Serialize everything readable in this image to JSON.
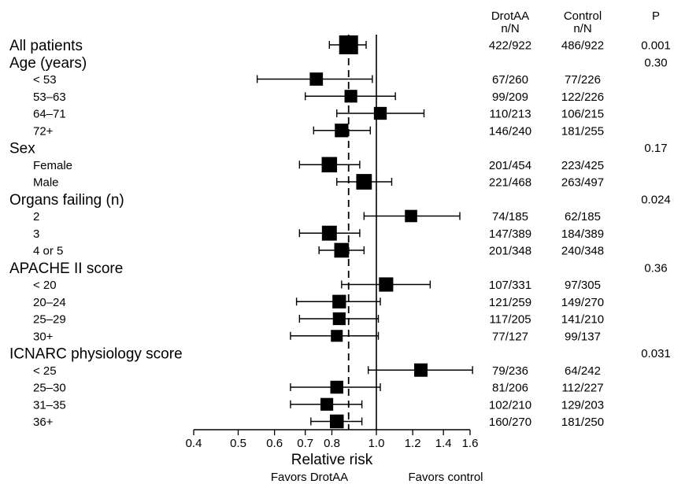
{
  "chart_data": {
    "type": "forest",
    "xlabel": "Relative risk",
    "xscale": "log",
    "xlim": [
      0.4,
      1.6
    ],
    "xticks": [
      "0.4",
      "0.5",
      "0.6",
      "0.7",
      "0.8",
      "1.0",
      "1.2",
      "1.4",
      "1.6"
    ],
    "reference_line": 1.0,
    "overall_line": 0.87,
    "favors_left": "Favors DrotAA",
    "favors_right": "Favors control",
    "columns": {
      "drotaa": [
        "DrotAA",
        "n/N"
      ],
      "control": [
        "Control",
        "n/N"
      ],
      "p": "P"
    },
    "rows": [
      {
        "label": "All patients",
        "kind": "header",
        "est": 0.87,
        "lo": 0.79,
        "hi": 0.95,
        "drotaa": "422/922",
        "control": "486/922",
        "p": "0.001",
        "size": 1.0
      },
      {
        "label": "Age (years)",
        "kind": "header",
        "p": "0.30"
      },
      {
        "label": "< 53",
        "kind": "sub",
        "est": 0.74,
        "lo": 0.55,
        "hi": 0.98,
        "drotaa": "67/260",
        "control": "77/226",
        "size": 0.48
      },
      {
        "label": "53–63",
        "kind": "sub",
        "est": 0.88,
        "lo": 0.7,
        "hi": 1.1,
        "drotaa": "99/209",
        "control": "122/226",
        "size": 0.44
      },
      {
        "label": "64–71",
        "kind": "sub",
        "est": 1.02,
        "lo": 0.82,
        "hi": 1.27,
        "drotaa": "110/213",
        "control": "106/215",
        "size": 0.45
      },
      {
        "label": "72+",
        "kind": "sub",
        "est": 0.84,
        "lo": 0.73,
        "hi": 0.97,
        "drotaa": "146/240",
        "control": "181/255",
        "size": 0.52
      },
      {
        "label": "Sex",
        "kind": "header",
        "p": "0.17"
      },
      {
        "label": "Female",
        "kind": "sub",
        "est": 0.79,
        "lo": 0.68,
        "hi": 0.92,
        "drotaa": "201/454",
        "control": "223/425",
        "size": 0.68
      },
      {
        "label": "Male",
        "kind": "sub",
        "est": 0.94,
        "lo": 0.82,
        "hi": 1.08,
        "drotaa": "221/468",
        "control": "263/497",
        "size": 0.7
      },
      {
        "label": "Organs failing (n)",
        "kind": "header",
        "p": "0.024"
      },
      {
        "label": "2",
        "kind": "sub",
        "est": 1.19,
        "lo": 0.94,
        "hi": 1.52,
        "drotaa": "74/185",
        "control": "62/185",
        "size": 0.4
      },
      {
        "label": "3",
        "kind": "sub",
        "est": 0.79,
        "lo": 0.68,
        "hi": 0.92,
        "drotaa": "147/389",
        "control": "184/389",
        "size": 0.64
      },
      {
        "label": "4 or 5",
        "kind": "sub",
        "est": 0.84,
        "lo": 0.75,
        "hi": 0.94,
        "drotaa": "201/348",
        "control": "240/348",
        "size": 0.62
      },
      {
        "label": "APACHE II score",
        "kind": "header",
        "p": "0.36"
      },
      {
        "label": "< 20",
        "kind": "sub",
        "est": 1.05,
        "lo": 0.84,
        "hi": 1.31,
        "drotaa": "107/331",
        "control": "97/305",
        "size": 0.58
      },
      {
        "label": "20–24",
        "kind": "sub",
        "est": 0.83,
        "lo": 0.67,
        "hi": 1.02,
        "drotaa": "121/259",
        "control": "149/270",
        "size": 0.52
      },
      {
        "label": "25–29",
        "kind": "sub",
        "est": 0.83,
        "lo": 0.68,
        "hi": 1.01,
        "drotaa": "117/205",
        "control": "141/210",
        "size": 0.44
      },
      {
        "label": "30+",
        "kind": "sub",
        "est": 0.82,
        "lo": 0.65,
        "hi": 1.01,
        "drotaa": "77/127",
        "control": "99/137",
        "size": 0.36
      },
      {
        "label": "ICNARC physiology score",
        "kind": "header",
        "p": "0.031"
      },
      {
        "label": "< 25",
        "kind": "sub",
        "est": 1.25,
        "lo": 0.96,
        "hi": 1.62,
        "drotaa": "79/236",
        "control": "64/242",
        "size": 0.5
      },
      {
        "label": "25–30",
        "kind": "sub",
        "est": 0.82,
        "lo": 0.65,
        "hi": 1.02,
        "drotaa": "81/206",
        "control": "112/227",
        "size": 0.46
      },
      {
        "label": "31–35",
        "kind": "sub",
        "est": 0.78,
        "lo": 0.65,
        "hi": 0.93,
        "drotaa": "102/210",
        "control": "129/203",
        "size": 0.44
      },
      {
        "label": "36+",
        "kind": "sub",
        "est": 0.82,
        "lo": 0.72,
        "hi": 0.93,
        "drotaa": "160/270",
        "control": "181/250",
        "size": 0.54
      }
    ]
  }
}
